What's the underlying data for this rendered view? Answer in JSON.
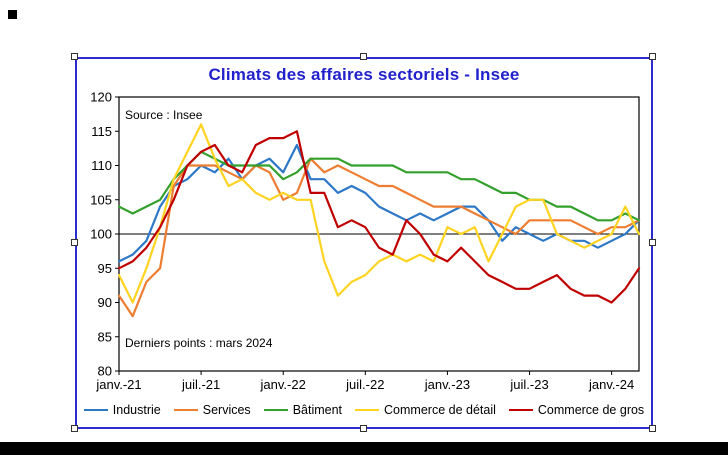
{
  "page": {
    "background": "#ffffff",
    "letterbox_color": "#000000"
  },
  "chart_data": {
    "type": "line",
    "title": "Climats des affaires sectoriels - Insee",
    "source_note": "Source : Insee",
    "last_points_note": "Derniers points : mars 2024",
    "x_tick_labels": [
      "janv.-21",
      "juil.-21",
      "janv.-22",
      "juil.-22",
      "janv.-23",
      "juil.-23",
      "janv.-24"
    ],
    "x_tick_indices": [
      0,
      6,
      12,
      18,
      24,
      30,
      36
    ],
    "n_points": 39,
    "y_axis": {
      "min": 80,
      "max": 120,
      "step": 5
    },
    "reference_line": 100,
    "legend_position": "bottom",
    "grid": false,
    "series": [
      {
        "name": "Industrie",
        "color": "#2E78C8",
        "values": [
          96,
          97,
          99,
          104,
          107,
          108,
          110,
          109,
          111,
          108,
          110,
          111,
          109,
          113,
          108,
          108,
          106,
          107,
          106,
          104,
          103,
          102,
          103,
          102,
          103,
          104,
          104,
          102,
          99,
          101,
          100,
          99,
          100,
          99,
          99,
          98,
          99,
          100,
          102
        ]
      },
      {
        "name": "Services",
        "color": "#ED7D31",
        "values": [
          91,
          88,
          93,
          95,
          107,
          110,
          110,
          110,
          109,
          108,
          110,
          109,
          105,
          106,
          111,
          109,
          110,
          109,
          108,
          107,
          107,
          106,
          105,
          104,
          104,
          104,
          103,
          102,
          101,
          100,
          102,
          102,
          102,
          102,
          101,
          100,
          101,
          101,
          102
        ]
      },
      {
        "name": "Bâtiment",
        "color": "#33A02C",
        "values": [
          104,
          103,
          104,
          105,
          108,
          110,
          112,
          111,
          110,
          110,
          110,
          110,
          108,
          109,
          111,
          111,
          111,
          110,
          110,
          110,
          110,
          109,
          109,
          109,
          109,
          108,
          108,
          107,
          106,
          106,
          105,
          105,
          104,
          104,
          103,
          102,
          102,
          103,
          102
        ]
      },
      {
        "name": "Commerce de détail",
        "color": "#FFD321",
        "values": [
          94,
          90,
          95,
          101,
          108,
          112,
          116,
          111,
          107,
          108,
          106,
          105,
          106,
          105,
          105,
          96,
          91,
          93,
          94,
          96,
          97,
          96,
          97,
          96,
          101,
          100,
          101,
          96,
          100,
          104,
          105,
          105,
          100,
          99,
          98,
          99,
          100,
          104,
          100
        ]
      },
      {
        "name": "Commerce de gros",
        "color": "#C00000",
        "values": [
          95,
          96,
          98,
          101,
          105,
          110,
          112,
          113,
          110,
          109,
          113,
          114,
          114,
          115,
          106,
          106,
          101,
          102,
          101,
          98,
          97,
          102,
          100,
          97,
          96,
          98,
          96,
          94,
          93,
          92,
          92,
          93,
          94,
          92,
          91,
          91,
          90,
          92,
          95
        ]
      }
    ]
  }
}
